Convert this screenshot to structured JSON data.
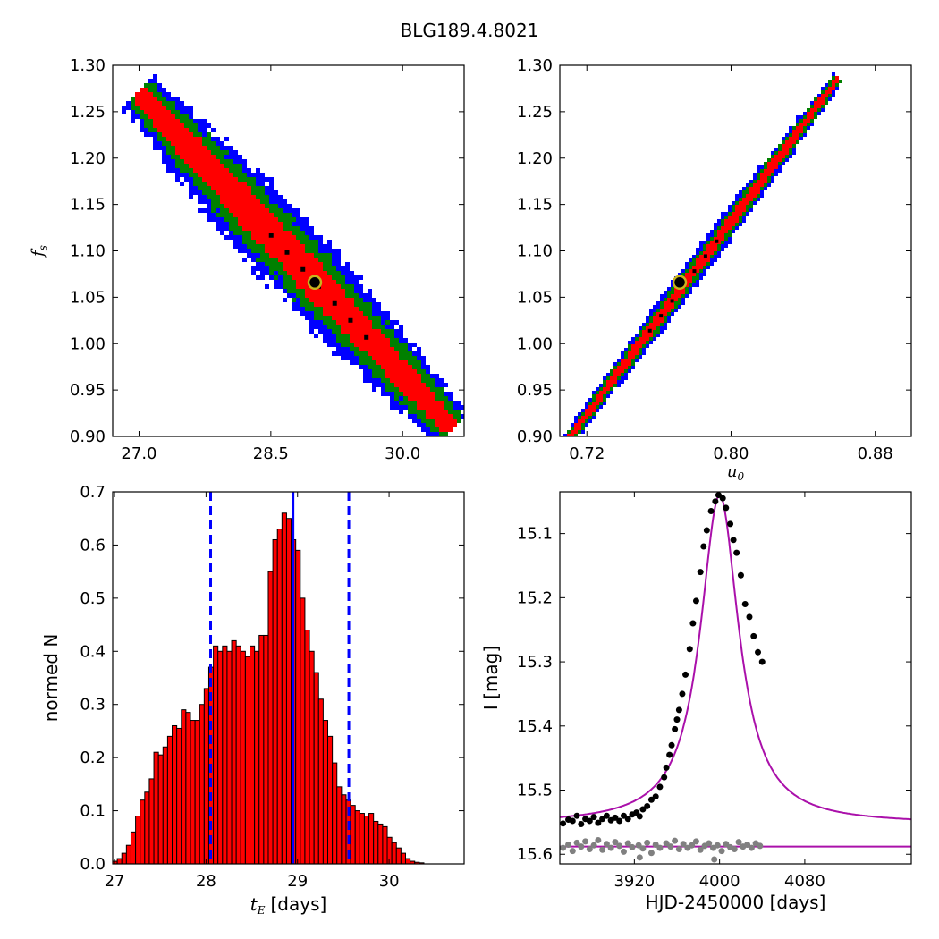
{
  "figure_title": "BLG189.4.8021",
  "colors": {
    "sigma3": "#0000ff",
    "sigma2": "#008000",
    "sigma1": "#ff0000",
    "best": "#000000",
    "model": "#aa10aa",
    "residual": "#808080",
    "hist": "#ff0000",
    "marker_edge": "#c8b41e"
  },
  "chart_data": [
    {
      "panel": "top-left",
      "type": "heatmap",
      "description": "confidence region density",
      "xlabel": "",
      "ylabel": "f_s",
      "xlim": [
        26.7,
        30.7
      ],
      "ylim": [
        0.9,
        1.3
      ],
      "xticks": [
        "27.0",
        "28.5",
        "30.0"
      ],
      "yticks": [
        "0.90",
        "0.95",
        "1.00",
        "1.05",
        "1.10",
        "1.15",
        "1.20",
        "1.25",
        "1.30"
      ],
      "ridge_start": [
        27.05,
        1.265
      ],
      "ridge_end": [
        30.5,
        0.915
      ],
      "best_fit": [
        29.0,
        1.066
      ]
    },
    {
      "panel": "top-right",
      "type": "heatmap",
      "xlabel": "u_0",
      "ylabel": "",
      "xlim": [
        0.705,
        0.9
      ],
      "ylim": [
        0.9,
        1.3
      ],
      "xticks": [
        "0.72",
        "0.80",
        "0.88"
      ],
      "yticks": [
        "0.90",
        "0.95",
        "1.00",
        "1.05",
        "1.10",
        "1.15",
        "1.20",
        "1.25",
        "1.30"
      ],
      "ridge_start": [
        0.713,
        0.905
      ],
      "ridge_end": [
        0.857,
        1.28
      ],
      "best_fit": [
        0.7715,
        1.066
      ]
    },
    {
      "panel": "bottom-left",
      "type": "bar",
      "xlabel": "t_E",
      "xlabel_unit": "[days]",
      "ylabel": "normed N",
      "xlim": [
        26.98,
        30.82
      ],
      "ylim": [
        0.0,
        0.7
      ],
      "xticks": [
        "27",
        "28",
        "29",
        "30"
      ],
      "yticks": [
        "0.0",
        "0.1",
        "0.2",
        "0.3",
        "0.4",
        "0.5",
        "0.6",
        "0.7"
      ],
      "bin_width": 0.05,
      "bins_start": 26.98,
      "values": [
        0.005,
        0.01,
        0.02,
        0.035,
        0.06,
        0.09,
        0.12,
        0.135,
        0.16,
        0.21,
        0.205,
        0.22,
        0.24,
        0.26,
        0.255,
        0.29,
        0.285,
        0.27,
        0.27,
        0.3,
        0.33,
        0.37,
        0.41,
        0.4,
        0.41,
        0.4,
        0.42,
        0.41,
        0.4,
        0.39,
        0.41,
        0.4,
        0.43,
        0.43,
        0.55,
        0.61,
        0.63,
        0.66,
        0.65,
        0.61,
        0.59,
        0.5,
        0.44,
        0.4,
        0.36,
        0.31,
        0.27,
        0.24,
        0.19,
        0.145,
        0.13,
        0.12,
        0.11,
        0.1,
        0.095,
        0.09,
        0.095,
        0.08,
        0.075,
        0.07,
        0.05,
        0.04,
        0.03,
        0.02,
        0.01,
        0.005,
        0.003,
        0.002
      ],
      "vline_solid": 28.95,
      "vlines_dashed": [
        28.05,
        29.56
      ]
    },
    {
      "panel": "bottom-right",
      "type": "line",
      "xlabel": "HJD-2450000 [days]",
      "ylabel": "I [mag]",
      "xlim": [
        3850,
        4180
      ],
      "ylim": [
        15.615,
        15.035
      ],
      "xticks": [
        "3920",
        "4000",
        "4080"
      ],
      "yticks": [
        "15.1",
        "15.2",
        "15.3",
        "15.4",
        "15.5",
        "15.6"
      ],
      "model": {
        "t0": 4000,
        "base": 15.553,
        "peak": 15.04,
        "tau": 22
      },
      "residual_level": 15.588,
      "data": [
        [
          3853,
          15.552
        ],
        [
          3858,
          15.546
        ],
        [
          3862,
          15.548
        ],
        [
          3866,
          15.54
        ],
        [
          3870,
          15.553
        ],
        [
          3874,
          15.545
        ],
        [
          3878,
          15.548
        ],
        [
          3882,
          15.542
        ],
        [
          3886,
          15.551
        ],
        [
          3890,
          15.545
        ],
        [
          3894,
          15.54
        ],
        [
          3898,
          15.547
        ],
        [
          3902,
          15.543
        ],
        [
          3906,
          15.548
        ],
        [
          3910,
          15.54
        ],
        [
          3914,
          15.545
        ],
        [
          3918,
          15.538
        ],
        [
          3922,
          15.535
        ],
        [
          3925,
          15.541
        ],
        [
          3928,
          15.53
        ],
        [
          3932,
          15.525
        ],
        [
          3936,
          15.515
        ],
        [
          3940,
          15.51
        ],
        [
          3944,
          15.495
        ],
        [
          3948,
          15.48
        ],
        [
          3950,
          15.465
        ],
        [
          3953,
          15.445
        ],
        [
          3955,
          15.43
        ],
        [
          3958,
          15.405
        ],
        [
          3960,
          15.39
        ],
        [
          3962,
          15.375
        ],
        [
          3965,
          15.35
        ],
        [
          3968,
          15.32
        ],
        [
          3972,
          15.28
        ],
        [
          3975,
          15.24
        ],
        [
          3978,
          15.205
        ],
        [
          3982,
          15.16
        ],
        [
          3985,
          15.12
        ],
        [
          3988,
          15.095
        ],
        [
          3992,
          15.065
        ],
        [
          3996,
          15.05
        ],
        [
          3999,
          15.04
        ],
        [
          4003,
          15.045
        ],
        [
          4006,
          15.06
        ],
        [
          4010,
          15.085
        ],
        [
          4013,
          15.11
        ],
        [
          4016,
          15.13
        ],
        [
          4020,
          15.165
        ],
        [
          4024,
          15.21
        ],
        [
          4028,
          15.23
        ],
        [
          4032,
          15.26
        ],
        [
          4036,
          15.285
        ],
        [
          4040,
          15.3
        ]
      ],
      "residuals": [
        [
          3853,
          15.59
        ],
        [
          3858,
          15.585
        ],
        [
          3862,
          15.595
        ],
        [
          3866,
          15.582
        ],
        [
          3870,
          15.588
        ],
        [
          3874,
          15.58
        ],
        [
          3878,
          15.592
        ],
        [
          3882,
          15.586
        ],
        [
          3886,
          15.578
        ],
        [
          3890,
          15.593
        ],
        [
          3894,
          15.584
        ],
        [
          3898,
          15.59
        ],
        [
          3902,
          15.581
        ],
        [
          3906,
          15.587
        ],
        [
          3910,
          15.596
        ],
        [
          3914,
          15.583
        ],
        [
          3918,
          15.589
        ],
        [
          3924,
          15.586
        ],
        [
          3928,
          15.591
        ],
        [
          3932,
          15.582
        ],
        [
          3936,
          15.598
        ],
        [
          3940,
          15.585
        ],
        [
          3944,
          15.59
        ],
        [
          3950,
          15.583
        ],
        [
          3954,
          15.588
        ],
        [
          3958,
          15.579
        ],
        [
          3962,
          15.592
        ],
        [
          3966,
          15.584
        ],
        [
          3970,
          15.59
        ],
        [
          3974,
          15.586
        ],
        [
          3978,
          15.58
        ],
        [
          3982,
          15.593
        ],
        [
          3986,
          15.587
        ],
        [
          3990,
          15.583
        ],
        [
          3994,
          15.59
        ],
        [
          3998,
          15.586
        ],
        [
          4002,
          15.595
        ],
        [
          4006,
          15.584
        ],
        [
          4010,
          15.589
        ],
        [
          4014,
          15.592
        ],
        [
          4018,
          15.581
        ],
        [
          4022,
          15.588
        ],
        [
          4026,
          15.585
        ],
        [
          4030,
          15.59
        ],
        [
          4034,
          15.583
        ],
        [
          4038,
          15.587
        ],
        [
          3925,
          15.605
        ],
        [
          3995,
          15.608
        ]
      ]
    }
  ]
}
